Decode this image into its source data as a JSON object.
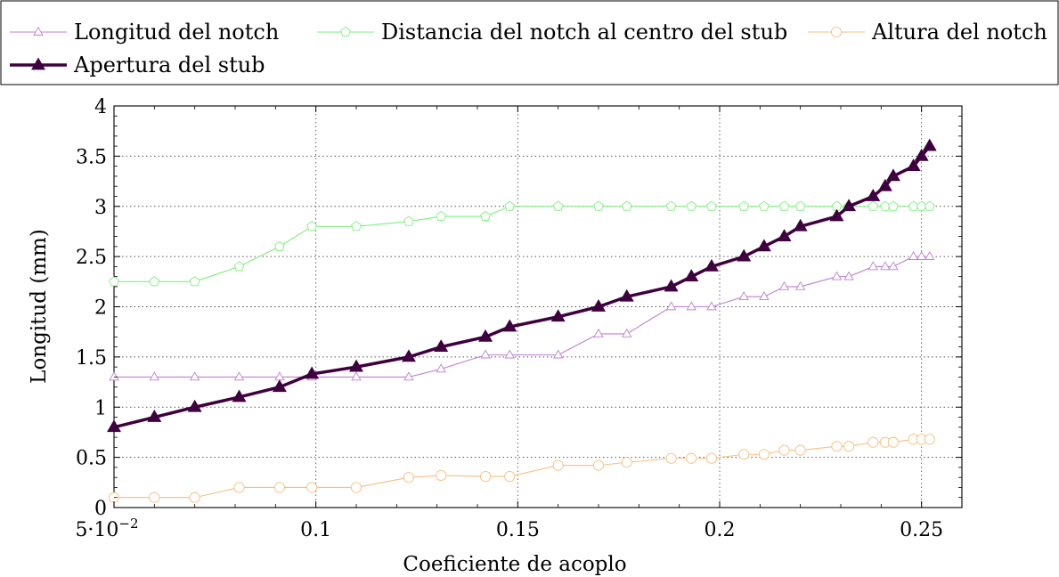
{
  "chart_data": {
    "type": "line",
    "title": "",
    "xlabel": "Coeficiente de acoplo",
    "ylabel": "Longitud (mm)",
    "xlim": [
      0.05,
      0.26
    ],
    "ylim": [
      0,
      4
    ],
    "grid": true,
    "legend_position": "top",
    "x_ticks": [
      {
        "value": 0.05,
        "label": "5·10"
      },
      {
        "value": 0.1,
        "label": "0.1"
      },
      {
        "value": 0.15,
        "label": "0.15"
      },
      {
        "value": 0.2,
        "label": "0.2"
      },
      {
        "value": 0.25,
        "label": "0.25"
      }
    ],
    "x_first_tick_exponent": "−2",
    "y_ticks": [
      {
        "value": 0,
        "label": "0"
      },
      {
        "value": 0.5,
        "label": "0.5"
      },
      {
        "value": 1,
        "label": "1"
      },
      {
        "value": 1.5,
        "label": "1.5"
      },
      {
        "value": 2,
        "label": "2"
      },
      {
        "value": 2.5,
        "label": "2.5"
      },
      {
        "value": 3,
        "label": "3"
      },
      {
        "value": 3.5,
        "label": "3.5"
      },
      {
        "value": 4,
        "label": "4"
      }
    ],
    "series": [
      {
        "name": "Longitud del notch",
        "color": "#c07fd3",
        "marker": "triangle-open",
        "points": [
          [
            0.05,
            1.3
          ],
          [
            0.06,
            1.3
          ],
          [
            0.07,
            1.3
          ],
          [
            0.081,
            1.3
          ],
          [
            0.091,
            1.3
          ],
          [
            0.099,
            1.3
          ],
          [
            0.11,
            1.3
          ],
          [
            0.123,
            1.3
          ],
          [
            0.131,
            1.38
          ],
          [
            0.142,
            1.52
          ],
          [
            0.148,
            1.52
          ],
          [
            0.16,
            1.52
          ],
          [
            0.17,
            1.73
          ],
          [
            0.177,
            1.73
          ],
          [
            0.188,
            2.0
          ],
          [
            0.193,
            2.0
          ],
          [
            0.198,
            2.0
          ],
          [
            0.206,
            2.1
          ],
          [
            0.211,
            2.1
          ],
          [
            0.216,
            2.2
          ],
          [
            0.22,
            2.2
          ],
          [
            0.229,
            2.3
          ],
          [
            0.232,
            2.3
          ],
          [
            0.238,
            2.4
          ],
          [
            0.241,
            2.4
          ],
          [
            0.243,
            2.4
          ],
          [
            0.248,
            2.5
          ],
          [
            0.25,
            2.5
          ],
          [
            0.252,
            2.5
          ]
        ]
      },
      {
        "name": "Distancia del notch al centro del stub",
        "color": "#7ff07f",
        "marker": "pentagon-open",
        "points": [
          [
            0.05,
            2.25
          ],
          [
            0.06,
            2.25
          ],
          [
            0.07,
            2.25
          ],
          [
            0.081,
            2.4
          ],
          [
            0.091,
            2.6
          ],
          [
            0.099,
            2.8
          ],
          [
            0.11,
            2.8
          ],
          [
            0.123,
            2.85
          ],
          [
            0.131,
            2.9
          ],
          [
            0.142,
            2.9
          ],
          [
            0.148,
            3.0
          ],
          [
            0.16,
            3.0
          ],
          [
            0.17,
            3.0
          ],
          [
            0.177,
            3.0
          ],
          [
            0.188,
            3.0
          ],
          [
            0.193,
            3.0
          ],
          [
            0.198,
            3.0
          ],
          [
            0.206,
            3.0
          ],
          [
            0.211,
            3.0
          ],
          [
            0.216,
            3.0
          ],
          [
            0.22,
            3.0
          ],
          [
            0.229,
            3.0
          ],
          [
            0.232,
            3.0
          ],
          [
            0.238,
            3.0
          ],
          [
            0.241,
            3.0
          ],
          [
            0.243,
            3.0
          ],
          [
            0.248,
            3.0
          ],
          [
            0.25,
            3.0
          ],
          [
            0.252,
            3.0
          ]
        ]
      },
      {
        "name": "Altura del notch",
        "color": "#f7bf80",
        "marker": "circle-open",
        "points": [
          [
            0.05,
            0.1
          ],
          [
            0.06,
            0.1
          ],
          [
            0.07,
            0.1
          ],
          [
            0.081,
            0.2
          ],
          [
            0.091,
            0.2
          ],
          [
            0.099,
            0.2
          ],
          [
            0.11,
            0.2
          ],
          [
            0.123,
            0.3
          ],
          [
            0.131,
            0.32
          ],
          [
            0.142,
            0.31
          ],
          [
            0.148,
            0.31
          ],
          [
            0.16,
            0.42
          ],
          [
            0.17,
            0.42
          ],
          [
            0.177,
            0.45
          ],
          [
            0.188,
            0.49
          ],
          [
            0.193,
            0.49
          ],
          [
            0.198,
            0.49
          ],
          [
            0.206,
            0.53
          ],
          [
            0.211,
            0.53
          ],
          [
            0.216,
            0.57
          ],
          [
            0.22,
            0.57
          ],
          [
            0.229,
            0.61
          ],
          [
            0.232,
            0.61
          ],
          [
            0.238,
            0.65
          ],
          [
            0.241,
            0.65
          ],
          [
            0.243,
            0.65
          ],
          [
            0.248,
            0.68
          ],
          [
            0.25,
            0.68
          ],
          [
            0.252,
            0.68
          ]
        ]
      },
      {
        "name": "Apertura del stub",
        "color": "#3f003f",
        "marker": "triangle-filled",
        "points": [
          [
            0.05,
            0.8
          ],
          [
            0.06,
            0.9
          ],
          [
            0.07,
            1.0
          ],
          [
            0.081,
            1.1
          ],
          [
            0.091,
            1.2
          ],
          [
            0.099,
            1.33
          ],
          [
            0.11,
            1.4
          ],
          [
            0.123,
            1.5
          ],
          [
            0.131,
            1.6
          ],
          [
            0.142,
            1.7
          ],
          [
            0.148,
            1.8
          ],
          [
            0.16,
            1.9
          ],
          [
            0.17,
            2.0
          ],
          [
            0.177,
            2.1
          ],
          [
            0.188,
            2.2
          ],
          [
            0.193,
            2.3
          ],
          [
            0.198,
            2.4
          ],
          [
            0.206,
            2.5
          ],
          [
            0.211,
            2.6
          ],
          [
            0.216,
            2.7
          ],
          [
            0.22,
            2.8
          ],
          [
            0.229,
            2.9
          ],
          [
            0.232,
            3.0
          ],
          [
            0.238,
            3.1
          ],
          [
            0.241,
            3.2
          ],
          [
            0.243,
            3.3
          ],
          [
            0.248,
            3.4
          ],
          [
            0.25,
            3.5
          ],
          [
            0.252,
            3.6
          ]
        ]
      }
    ]
  }
}
